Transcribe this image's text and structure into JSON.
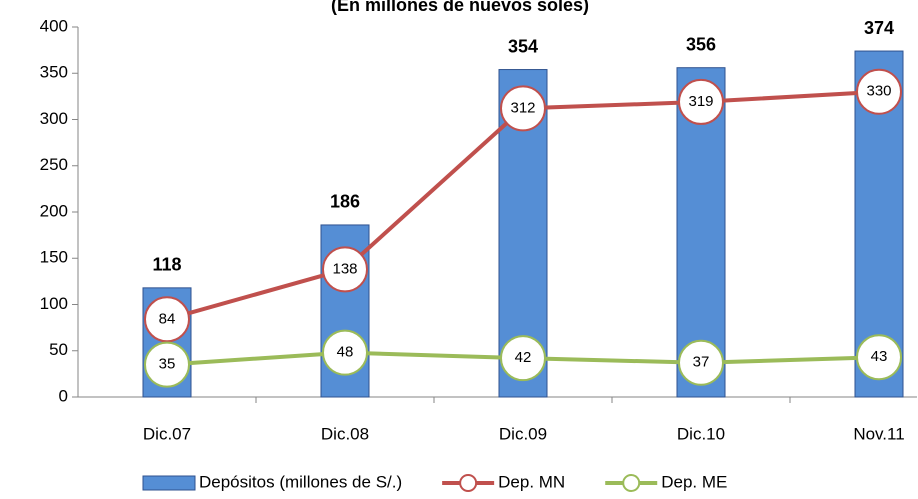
{
  "chart_data": {
    "type": "bar",
    "subtitle": "(En millones de nuevos soles)",
    "categories": [
      "Dic.07",
      "Dic.08",
      "Dic.09",
      "Dic.10",
      "Nov.11"
    ],
    "series": [
      {
        "name": "Depósitos (millones de S/.)",
        "type": "bar",
        "color": "#558ed5",
        "values": [
          118,
          186,
          354,
          356,
          374
        ]
      },
      {
        "name": "Dep. MN",
        "type": "line",
        "color": "#c0504d",
        "values": [
          84,
          138,
          312,
          319,
          330
        ]
      },
      {
        "name": "Dep. ME",
        "type": "line",
        "color": "#9bbb59",
        "values": [
          35,
          48,
          42,
          37,
          43
        ]
      }
    ],
    "ylim": [
      0,
      400
    ],
    "yticks": [
      0,
      50,
      100,
      150,
      200,
      250,
      300,
      350,
      400
    ],
    "legend": "bottom"
  }
}
